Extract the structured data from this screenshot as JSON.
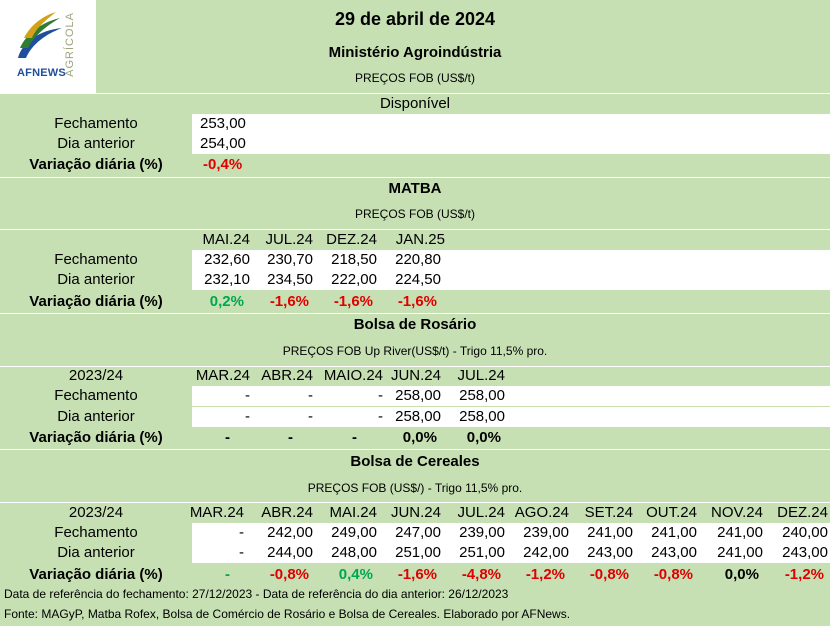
{
  "header": {
    "date": "29 de abril de 2024",
    "logo_text": "AFNEWS",
    "logo_side": "AGRÍCOLA"
  },
  "ministerio": {
    "title": "Ministério Agroindústria",
    "subtitle": "PREÇOS FOB (US$/t)",
    "column": "Disponível",
    "fechamento": "253,00",
    "dia_anterior": "254,00",
    "variacao": "-0,4%"
  },
  "matba": {
    "title": "MATBA",
    "subtitle": "PREÇOS FOB (US$/t)",
    "columns": [
      "MAI.24",
      "JUL.24",
      "DEZ.24",
      "JAN.25"
    ],
    "fechamento": [
      "232,60",
      "230,70",
      "218,50",
      "220,80"
    ],
    "dia_anterior": [
      "232,10",
      "234,50",
      "222,00",
      "224,50"
    ],
    "variacao": [
      "0,2%",
      "-1,6%",
      "-1,6%",
      "-1,6%"
    ]
  },
  "rosario": {
    "title": "Bolsa de Rosário",
    "subtitle": "PREÇOS FOB Up River(US$/t) - Trigo 11,5% pro.",
    "year": "2023/24",
    "columns": [
      "MAR.24",
      "ABR.24",
      "MAIO.24",
      "JUN.24",
      "JUL.24"
    ],
    "fechamento": [
      "-",
      "-",
      "-",
      "258,00",
      "258,00"
    ],
    "dia_anterior": [
      "-",
      "-",
      "-",
      "258,00",
      "258,00"
    ],
    "variacao": [
      "-",
      "-",
      "-",
      "0,0%",
      "0,0%"
    ]
  },
  "cereales": {
    "title": "Bolsa de Cereales",
    "subtitle": "PREÇOS FOB (US$/) - Trigo 11,5% pro.",
    "year": "2023/24",
    "columns": [
      "MAR.24",
      "ABR.24",
      "MAI.24",
      "JUN.24",
      "JUL.24",
      "AGO.24",
      "SET.24",
      "OUT.24",
      "NOV.24",
      "DEZ.24"
    ],
    "fechamento": [
      "-",
      "242,00",
      "249,00",
      "247,00",
      "239,00",
      "239,00",
      "241,00",
      "241,00",
      "241,00",
      "240,00"
    ],
    "dia_anterior": [
      "-",
      "244,00",
      "248,00",
      "251,00",
      "251,00",
      "242,00",
      "243,00",
      "243,00",
      "241,00",
      "243,00"
    ],
    "variacao": [
      "-",
      "-0,8%",
      "0,4%",
      "-1,6%",
      "-4,8%",
      "-1,2%",
      "-0,8%",
      "-0,8%",
      "0,0%",
      "-1,2%"
    ]
  },
  "labels": {
    "fechamento": "Fechamento",
    "dia_anterior": "Dia anterior",
    "variacao": "Variação diária (%)"
  },
  "footer": {
    "ref": "Data de referência do fechamento: 27/12/2023 - Data de referência do dia anterior: 26/12/2023",
    "source": "Fonte: MAGyP, Matba Rofex, Bolsa de Comércio de Rosário e Bolsa de Cereales. Elaborado por AFNews."
  },
  "colors": {
    "background": "#c6e0b4",
    "negative": "#e00000",
    "positive": "#00a650"
  }
}
